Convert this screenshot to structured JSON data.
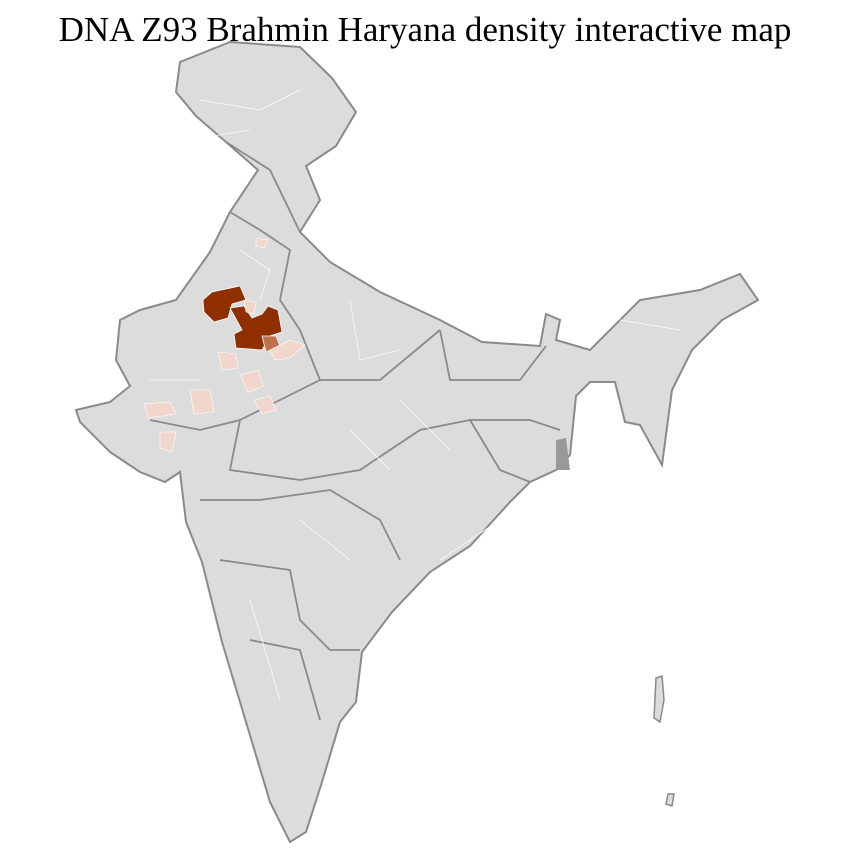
{
  "title": "DNA Z93 Brahmin Haryana density interactive map",
  "colors": {
    "land": "#dcdcdc",
    "state_border": "#8a8a8a",
    "district_border": "#ffffff",
    "high_density": "#8f2f00",
    "medium_density": "#c0704a",
    "low_density": "#f1d7cb",
    "background": "#ffffff"
  }
}
